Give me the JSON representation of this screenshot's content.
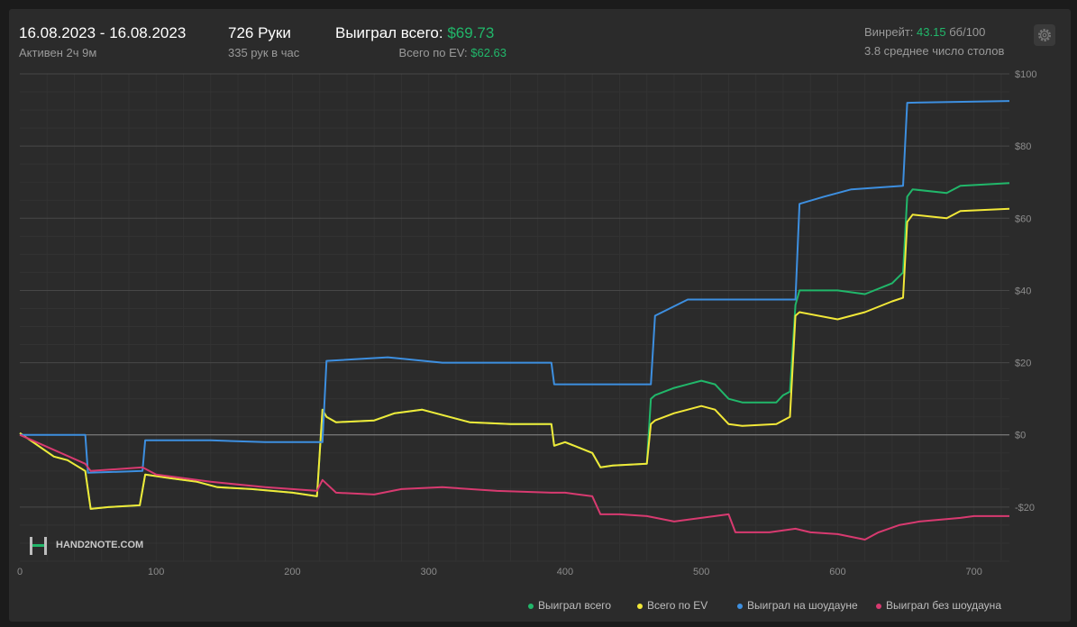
{
  "header": {
    "date_range": "16.08.2023 - 16.08.2023",
    "active_time": "Активен 2ч 9м",
    "hands": "726 Руки",
    "hands_per_hour": "335 рук в час",
    "won_total_label": "Выиграл всего:",
    "won_total_value": "$69.73",
    "ev_label": "Всего по EV:",
    "ev_value": "$62.63",
    "winrate_label": "Винрейт:",
    "winrate_value": "43.15",
    "winrate_unit": "бб/100",
    "avg_tables": "3.8 среднее число столов"
  },
  "watermark": "HAND2NOTE.COM",
  "colors": {
    "background": "#2b2b2b",
    "green": "#21b76a",
    "yellow": "#f2e838",
    "blue": "#3d8fe0",
    "pink": "#d83a70"
  },
  "icons": {
    "settings": "gear-icon",
    "logo": "hand2note-logo-icon"
  },
  "chart_data": {
    "type": "line",
    "xlabel": "",
    "ylabel": "",
    "xlim": [
      0,
      726
    ],
    "ylim": [
      -35,
      100
    ],
    "x_ticks": [
      0,
      100,
      200,
      300,
      400,
      500,
      600,
      700
    ],
    "y_ticks": [
      -20,
      0,
      20,
      40,
      60,
      80,
      100
    ],
    "y_tick_labels": [
      "-$20",
      "$0",
      "$20",
      "$40",
      "$60",
      "$80",
      "$100"
    ],
    "grid": true,
    "legend_position": "bottom-right",
    "series": [
      {
        "name": "Выиграл всего",
        "color": "#21b76a",
        "x": [
          0,
          25,
          35,
          48,
          52,
          65,
          88,
          92,
          110,
          130,
          145,
          170,
          200,
          218,
          222,
          225,
          232,
          260,
          275,
          295,
          330,
          360,
          390,
          392,
          400,
          420,
          426,
          435,
          460,
          463,
          466,
          480,
          500,
          510,
          520,
          530,
          555,
          560,
          565,
          569,
          572,
          600,
          620,
          640,
          648,
          651,
          655,
          680,
          690,
          726
        ],
        "y": [
          0.5,
          -6,
          -7,
          -10,
          -20.5,
          -20,
          -19.5,
          -11,
          -12,
          -13,
          -14.5,
          -15,
          -16,
          -17,
          7,
          5,
          3.5,
          4,
          6,
          7,
          3.5,
          3,
          3,
          -3,
          -2,
          -5,
          -9,
          -8.5,
          -8,
          10,
          11,
          13,
          15,
          14,
          10,
          9,
          9,
          11,
          12,
          36,
          40,
          40,
          39,
          42,
          45,
          66,
          68,
          67,
          69,
          69.73
        ]
      },
      {
        "name": "Всего по EV",
        "color": "#f2e838",
        "x": [
          0,
          25,
          35,
          48,
          52,
          65,
          88,
          92,
          110,
          130,
          145,
          170,
          200,
          218,
          222,
          225,
          232,
          260,
          275,
          295,
          330,
          360,
          390,
          392,
          400,
          420,
          426,
          435,
          460,
          463,
          466,
          480,
          500,
          510,
          520,
          530,
          555,
          560,
          565,
          569,
          572,
          600,
          620,
          640,
          648,
          651,
          655,
          680,
          690,
          726
        ],
        "y": [
          0.5,
          -6,
          -7,
          -10,
          -20.5,
          -20,
          -19.5,
          -11,
          -12,
          -13,
          -14.5,
          -15,
          -16,
          -17,
          7,
          5,
          3.5,
          4,
          6,
          7,
          3.5,
          3,
          3,
          -3,
          -2,
          -5,
          -9,
          -8.5,
          -8,
          3,
          4,
          6,
          8,
          7,
          3,
          2.5,
          3,
          4,
          5,
          33,
          34,
          32,
          34,
          37,
          38,
          59,
          61,
          60,
          62,
          62.63
        ]
      },
      {
        "name": "Выиграл на шоудауне",
        "color": "#3d8fe0",
        "x": [
          0,
          48,
          50,
          90,
          92,
          140,
          180,
          222,
          225,
          270,
          310,
          390,
          392,
          463,
          466,
          490,
          569,
          572,
          590,
          610,
          648,
          651,
          726
        ],
        "y": [
          0,
          0,
          -10.5,
          -10,
          -1.5,
          -1.5,
          -2,
          -2,
          20.5,
          21.5,
          20,
          20,
          14,
          14,
          33,
          37.5,
          37.5,
          64,
          66,
          68,
          69,
          92,
          92.5
        ]
      },
      {
        "name": "Выиграл без шоудауна",
        "color": "#d83a70",
        "x": [
          0,
          48,
          52,
          90,
          100,
          140,
          180,
          218,
          222,
          232,
          260,
          280,
          310,
          350,
          390,
          400,
          420,
          426,
          440,
          460,
          480,
          520,
          525,
          550,
          569,
          580,
          600,
          620,
          630,
          645,
          660,
          690,
          700,
          726
        ],
        "y": [
          0,
          -8,
          -10,
          -9,
          -11,
          -13,
          -14.5,
          -15.5,
          -12.5,
          -16,
          -16.5,
          -15,
          -14.5,
          -15.5,
          -16,
          -16,
          -17,
          -22,
          -22,
          -22.5,
          -24,
          -22,
          -27,
          -27,
          -26,
          -27,
          -27.5,
          -29,
          -27,
          -25,
          -24,
          -23,
          -22.5,
          -22.5
        ]
      }
    ]
  }
}
